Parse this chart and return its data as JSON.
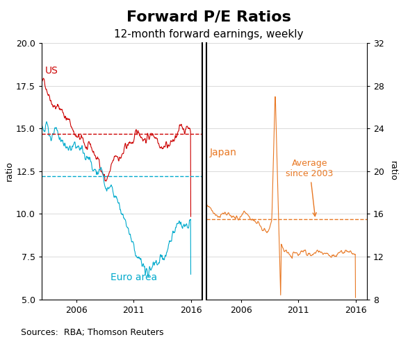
{
  "title": "Forward P/E Ratios",
  "subtitle": "12-month forward earnings, weekly",
  "title_fontsize": 16,
  "subtitle_fontsize": 11,
  "left_ylabel": "ratio",
  "right_ylabel": "ratio",
  "left_ylim": [
    5.0,
    20.0
  ],
  "right_ylim": [
    8.0,
    32.0
  ],
  "left_yticks": [
    5.0,
    7.5,
    10.0,
    12.5,
    15.0,
    17.5,
    20.0
  ],
  "right_yticks": [
    8,
    12,
    16,
    20,
    24,
    28,
    32
  ],
  "color_us": "#cc0000",
  "color_euro": "#00aacc",
  "color_japan": "#e87722",
  "us_avg": 14.7,
  "euro_avg": 12.2,
  "japan_avg": 15.5,
  "source_text": "Sources:  RBA; Thomson Reuters",
  "source_fontsize": 9,
  "background_color": "#ffffff"
}
